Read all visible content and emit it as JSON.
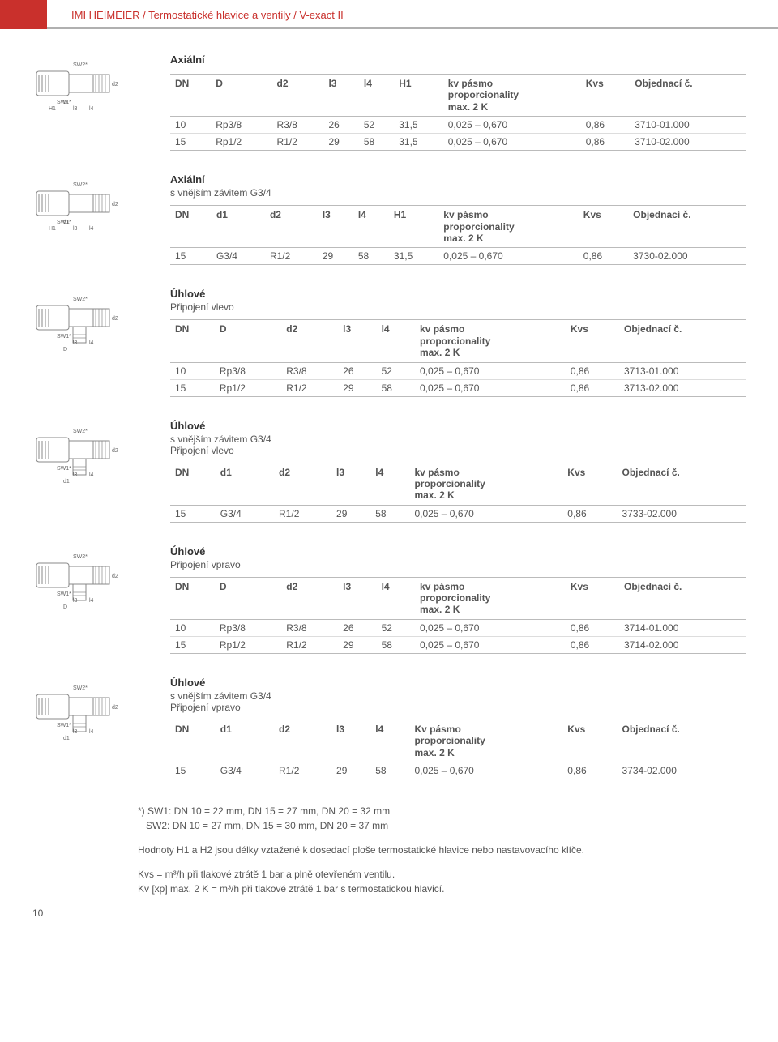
{
  "header": {
    "breadcrumb": "IMI HEIMEIER / Termostatické hlavice a ventily / V-exact II",
    "accent_color": "#c9302c"
  },
  "kv_header": "kv pásmo proporcionality max. 2 K",
  "kv_header_line1": "kv pásmo",
  "kv_header_line2": "proporcionality",
  "kv_header_line3": "max. 2 K",
  "sections": [
    {
      "title": "Axiální",
      "subtitle": "",
      "diagram_label_left": "24 DN10\n27 DN15",
      "columns": [
        "DN",
        "D",
        "d2",
        "l3",
        "l4",
        "H1",
        "kv",
        "Kvs",
        "Objednací č."
      ],
      "rows": [
        [
          "10",
          "Rp3/8",
          "R3/8",
          "26",
          "52",
          "31,5",
          "0,025 – 0,670",
          "0,86",
          "3710-01.000"
        ],
        [
          "15",
          "Rp1/2",
          "R1/2",
          "29",
          "58",
          "31,5",
          "0,025 – 0,670",
          "0,86",
          "3710-02.000"
        ]
      ]
    },
    {
      "title": "Axiální",
      "subtitle": "s vnějším závitem G3/4",
      "columns": [
        "DN",
        "d1",
        "d2",
        "l3",
        "l4",
        "H1",
        "kv",
        "Kvs",
        "Objednací č."
      ],
      "rows": [
        [
          "15",
          "G3/4",
          "R1/2",
          "29",
          "58",
          "31,5",
          "0,025 – 0,670",
          "0,86",
          "3730-02.000"
        ]
      ]
    },
    {
      "title": "Úhlové",
      "subtitle": "Připojení vlevo",
      "columns": [
        "DN",
        "D",
        "d2",
        "l3",
        "l4",
        "kv",
        "Kvs",
        "Objednací č."
      ],
      "rows": [
        [
          "10",
          "Rp3/8",
          "R3/8",
          "26",
          "52",
          "0,025 – 0,670",
          "0,86",
          "3713-01.000"
        ],
        [
          "15",
          "Rp1/2",
          "R1/2",
          "29",
          "58",
          "0,025 – 0,670",
          "0,86",
          "3713-02.000"
        ]
      ]
    },
    {
      "title": "Úhlové",
      "subtitle": "s vnějším závitem G3/4\nPřipojení vlevo",
      "columns": [
        "DN",
        "d1",
        "d2",
        "l3",
        "l4",
        "kv",
        "Kvs",
        "Objednací č."
      ],
      "rows": [
        [
          "15",
          "G3/4",
          "R1/2",
          "29",
          "58",
          "0,025 – 0,670",
          "0,86",
          "3733-02.000"
        ]
      ]
    },
    {
      "title": "Úhlové",
      "subtitle": "Připojení vpravo",
      "columns": [
        "DN",
        "D",
        "d2",
        "l3",
        "l4",
        "kv",
        "Kvs",
        "Objednací č."
      ],
      "rows": [
        [
          "10",
          "Rp3/8",
          "R3/8",
          "26",
          "52",
          "0,025 – 0,670",
          "0,86",
          "3714-01.000"
        ],
        [
          "15",
          "Rp1/2",
          "R1/2",
          "29",
          "58",
          "0,025 – 0,670",
          "0,86",
          "3714-02.000"
        ]
      ]
    },
    {
      "title": "Úhlové",
      "subtitle": "s vnějším závitem G3/4\nPřipojení vpravo",
      "columns": [
        "DN",
        "d1",
        "d2",
        "l3",
        "l4",
        "Kv",
        "Kvs",
        "Objednací č."
      ],
      "kv_col_label": "Kv pásmo",
      "rows": [
        [
          "15",
          "G3/4",
          "R1/2",
          "29",
          "58",
          "0,025 – 0,670",
          "0,86",
          "3734-02.000"
        ]
      ]
    }
  ],
  "footer": {
    "note1": "*) SW1: DN 10 = 22 mm, DN 15 = 27 mm, DN 20 = 32 mm",
    "note1b": "SW2: DN 10 = 27 mm, DN 15 = 30 mm, DN 20 = 37 mm",
    "note2": "Hodnoty H1 a H2 jsou délky vztažené k dosedací ploše termostatické hlavice nebo nastavovacího klíče.",
    "note3": "Kvs = m³/h při tlakové ztrátě 1 bar a plně otevřeném ventilu.",
    "note4": "Kv [xp] max. 2 K = m³/h při tlakové ztrátě 1 bar s termostatickou hlavicí."
  },
  "page_number": "10"
}
